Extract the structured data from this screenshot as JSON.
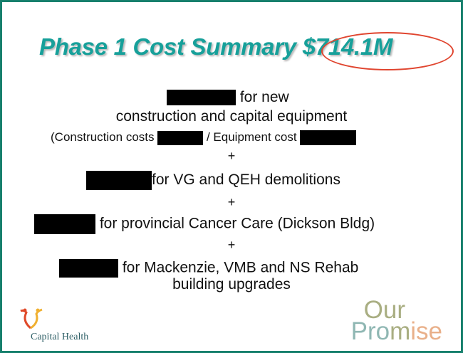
{
  "title": {
    "text": "Phase 1 Cost Summary",
    "amount": "$714.1M",
    "color": "#17a09a",
    "circle_color": "#e0452f"
  },
  "body": {
    "line1_suffix": "for new",
    "line2": "construction and capital equipment",
    "line3_prefix": "(Construction costs",
    "line3_middle": "/ Equipment cost",
    "plus": "+",
    "line4_suffix": "for VG and QEH demolitions",
    "line5_suffix": "for provincial Cancer Care (Dickson Bldg)",
    "line6_suffix": "for Mackenzie, VMB and NS Rehab",
    "line7": "building upgrades"
  },
  "logos": {
    "capital_health": "Capital Health",
    "our_promise": {
      "our": "Our",
      "promise_parts": [
        "Pro",
        "m",
        "ise"
      ]
    }
  },
  "border_color": "#17806d"
}
